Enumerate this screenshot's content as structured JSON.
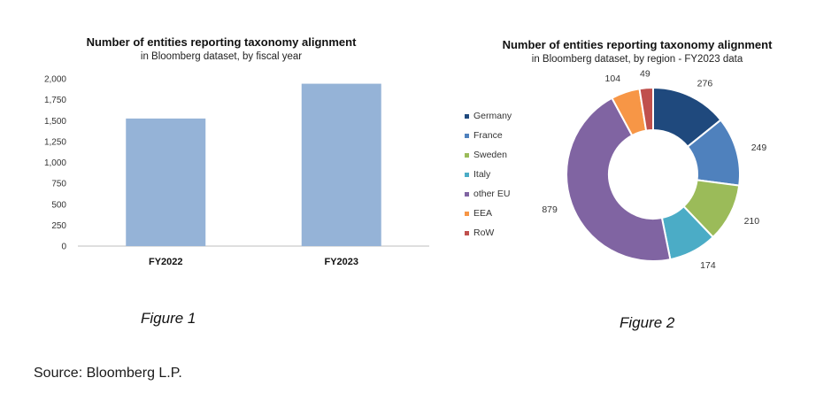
{
  "figures": [
    {
      "title": "Number of entities reporting taxonomy alignment",
      "subtitle": "in Bloomberg dataset, by fiscal year",
      "caption": "Figure 1"
    },
    {
      "title": "Number of entities reporting taxonomy alignment",
      "subtitle": "in Bloomberg dataset, by region - FY2023 data",
      "caption": "Figure 2"
    }
  ],
  "source": "Source: Bloomberg L.P.",
  "chart_data": [
    {
      "type": "bar",
      "title": "Number of entities reporting taxonomy alignment",
      "subtitle": "in Bloomberg dataset, by fiscal year",
      "categories": [
        "FY2022",
        "FY2023"
      ],
      "values": [
        1525,
        1941
      ],
      "ylim": [
        0,
        2000
      ],
      "yticks": [
        0,
        250,
        500,
        750,
        1000,
        1250,
        1500,
        1750,
        2000
      ],
      "ytick_labels": [
        "0",
        "250",
        "500",
        "750",
        "1,000",
        "1,250",
        "1,500",
        "1,750",
        "2,000"
      ],
      "grid": false,
      "color": "#95B3D7"
    },
    {
      "type": "pie",
      "donut": true,
      "title": "Number of entities reporting taxonomy alignment",
      "subtitle": "in Bloomberg dataset, by region - FY2023 data",
      "labels": [
        "Germany",
        "France",
        "Sweden",
        "Italy",
        "other EU",
        "EEA",
        "RoW"
      ],
      "values": [
        276,
        249,
        210,
        174,
        879,
        104,
        49
      ],
      "colors": [
        "#1F497D",
        "#4F81BD",
        "#9BBB59",
        "#4BACC6",
        "#8064A2",
        "#F79646",
        "#C0504D"
      ],
      "legend_position": "left"
    }
  ]
}
